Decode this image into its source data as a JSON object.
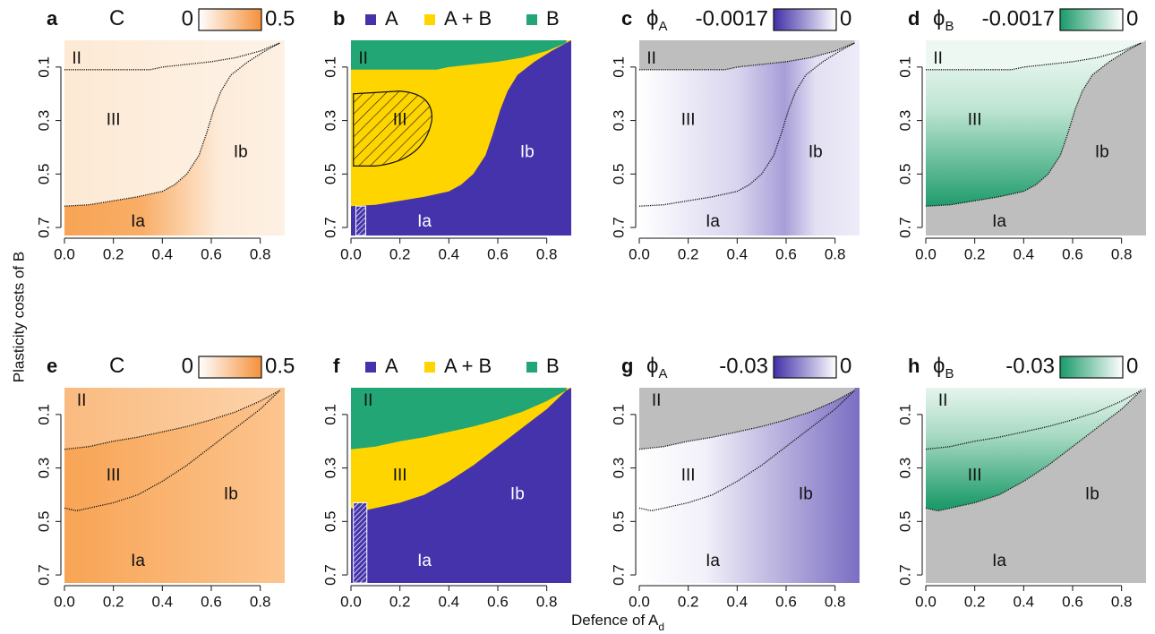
{
  "y_label": "Plasticity costs of B",
  "x_label": "Defence of A",
  "x_label_sub": "d",
  "chart_data": [
    {
      "type": "heatmap",
      "panel": "a",
      "title": "C",
      "colorbar": {
        "ticks": [
          0,
          0.5
        ],
        "colors": [
          "#ffffff",
          "#f5903a"
        ]
      },
      "regions": [
        "II",
        "III",
        "Ib",
        "Ia"
      ],
      "xlim": [
        0,
        0.9
      ],
      "ylim": [
        0,
        0.73
      ],
      "y_inverted": true,
      "xticks": [
        {
          "value": 0,
          "label": "0.0"
        },
        0.2,
        0.4,
        0.6,
        0.8
      ],
      "yticks": [
        0.1,
        0.3,
        0.5,
        0.7
      ]
    },
    {
      "type": "categorical",
      "panel": "b",
      "legend": [
        {
          "name": "A",
          "color": "#4433aa"
        },
        {
          "name": "A + B",
          "color": "#ffd500"
        },
        {
          "name": "B",
          "color": "#22a676"
        }
      ],
      "regions": [
        "II",
        "III",
        "Ib",
        "Ia"
      ],
      "xlim": [
        0,
        0.9
      ],
      "ylim": [
        0,
        0.73
      ],
      "y_inverted": true,
      "xticks": [
        {
          "value": 0,
          "label": "0.0"
        },
        0.2,
        0.4,
        0.6,
        0.8
      ],
      "yticks": [
        0.1,
        0.3,
        0.5,
        0.7
      ]
    },
    {
      "type": "heatmap",
      "panel": "c",
      "title": "ϕ",
      "title_sub": "A",
      "colorbar": {
        "ticks": [
          -0.0017,
          0
        ],
        "colors": [
          "#4030a8",
          "#ffffff"
        ]
      },
      "regions": [
        "II",
        "III",
        "Ib",
        "Ia"
      ],
      "xlim": [
        0,
        0.9
      ],
      "ylim": [
        0,
        0.73
      ],
      "y_inverted": true,
      "xticks": [
        {
          "value": 0,
          "label": "0.0"
        },
        0.2,
        0.4,
        0.6,
        0.8
      ],
      "yticks": [
        0.1,
        0.3,
        0.5,
        0.7
      ]
    },
    {
      "type": "heatmap",
      "panel": "d",
      "title": "ϕ",
      "title_sub": "B",
      "colorbar": {
        "ticks": [
          -0.0017,
          0
        ],
        "colors": [
          "#1a9a6a",
          "#ffffff"
        ]
      },
      "regions": [
        "II",
        "III",
        "Ib",
        "Ia"
      ],
      "xlim": [
        0,
        0.9
      ],
      "ylim": [
        0,
        0.73
      ],
      "y_inverted": true,
      "xticks": [
        {
          "value": 0,
          "label": "0.0"
        },
        0.2,
        0.4,
        0.6,
        0.8
      ],
      "yticks": [
        0.1,
        0.3,
        0.5,
        0.7
      ]
    },
    {
      "type": "heatmap",
      "panel": "e",
      "title": "C",
      "colorbar": {
        "ticks": [
          0,
          0.5
        ],
        "colors": [
          "#ffffff",
          "#f5903a"
        ]
      },
      "regions": [
        "II",
        "III",
        "Ib",
        "Ia"
      ],
      "xlim": [
        0,
        0.9
      ],
      "ylim": [
        0,
        0.73
      ],
      "y_inverted": true,
      "xticks": [
        {
          "value": 0,
          "label": "0.0"
        },
        0.2,
        0.4,
        0.6,
        0.8
      ],
      "yticks": [
        0.1,
        0.3,
        0.5,
        0.7
      ]
    },
    {
      "type": "categorical",
      "panel": "f",
      "legend": [
        {
          "name": "A",
          "color": "#4433aa"
        },
        {
          "name": "A + B",
          "color": "#ffd500"
        },
        {
          "name": "B",
          "color": "#22a676"
        }
      ],
      "regions": [
        "II",
        "III",
        "Ib",
        "Ia"
      ],
      "xlim": [
        0,
        0.9
      ],
      "ylim": [
        0,
        0.73
      ],
      "y_inverted": true,
      "xticks": [
        {
          "value": 0,
          "label": "0.0"
        },
        0.2,
        0.4,
        0.6,
        0.8
      ],
      "yticks": [
        0.1,
        0.3,
        0.5,
        0.7
      ]
    },
    {
      "type": "heatmap",
      "panel": "g",
      "title": "ϕ",
      "title_sub": "A",
      "colorbar": {
        "ticks": [
          -0.03,
          0
        ],
        "colors": [
          "#4030a8",
          "#ffffff"
        ]
      },
      "regions": [
        "II",
        "III",
        "Ib",
        "Ia"
      ],
      "xlim": [
        0,
        0.9
      ],
      "ylim": [
        0,
        0.73
      ],
      "y_inverted": true,
      "xticks": [
        {
          "value": 0,
          "label": "0.0"
        },
        0.2,
        0.4,
        0.6,
        0.8
      ],
      "yticks": [
        0.1,
        0.3,
        0.5,
        0.7
      ]
    },
    {
      "type": "heatmap",
      "panel": "h",
      "title": "ϕ",
      "title_sub": "B",
      "colorbar": {
        "ticks": [
          -0.03,
          0
        ],
        "colors": [
          "#1a9a6a",
          "#ffffff"
        ]
      },
      "regions": [
        "II",
        "III",
        "Ib",
        "Ia"
      ],
      "xlim": [
        0,
        0.9
      ],
      "ylim": [
        0,
        0.73
      ],
      "y_inverted": true,
      "xticks": [
        {
          "value": 0,
          "label": "0.0"
        },
        0.2,
        0.4,
        0.6,
        0.8
      ],
      "yticks": [
        0.1,
        0.3,
        0.5,
        0.7
      ]
    }
  ]
}
